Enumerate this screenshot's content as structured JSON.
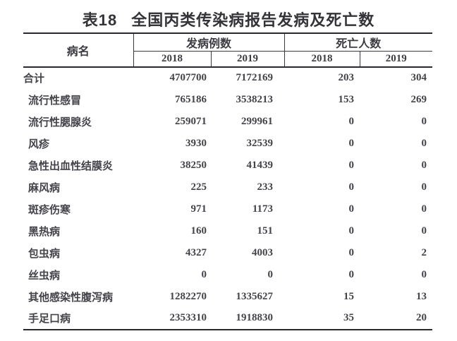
{
  "title": {
    "tag": "表18",
    "text": "全国丙类传染病报告发病及死亡数"
  },
  "table": {
    "col_disease": "病名",
    "group_cases": "发病例数",
    "group_deaths": "死亡人数",
    "year_headers": [
      "2018",
      "2019",
      "2018",
      "2019"
    ],
    "rows": [
      {
        "name": "合计",
        "values": [
          "4707700",
          "7172169",
          "203",
          "304"
        ]
      },
      {
        "name": "流行性感冒",
        "values": [
          "765186",
          "3538213",
          "153",
          "269"
        ]
      },
      {
        "name": "流行性腮腺炎",
        "values": [
          "259071",
          "299961",
          "0",
          "0"
        ]
      },
      {
        "name": "风疹",
        "values": [
          "3930",
          "32539",
          "0",
          "0"
        ]
      },
      {
        "name": "急性出血性结膜炎",
        "values": [
          "38250",
          "41439",
          "0",
          "0"
        ]
      },
      {
        "name": "麻风病",
        "values": [
          "225",
          "233",
          "0",
          "0"
        ]
      },
      {
        "name": "斑疹伤寒",
        "values": [
          "971",
          "1173",
          "0",
          "0"
        ]
      },
      {
        "name": "黑热病",
        "values": [
          "160",
          "151",
          "0",
          "0"
        ]
      },
      {
        "name": "包虫病",
        "values": [
          "4327",
          "4003",
          "0",
          "2"
        ]
      },
      {
        "name": "丝虫病",
        "values": [
          "0",
          "0",
          "0",
          "0"
        ]
      },
      {
        "name": "其他感染性腹泻病",
        "values": [
          "1282270",
          "1335627",
          "15",
          "13"
        ]
      },
      {
        "name": "手足口病",
        "values": [
          "2353310",
          "1918830",
          "35",
          "20"
        ]
      }
    ]
  },
  "colors": {
    "text": "#3c3c42",
    "line": "#29292d",
    "background": "#ffffff"
  }
}
